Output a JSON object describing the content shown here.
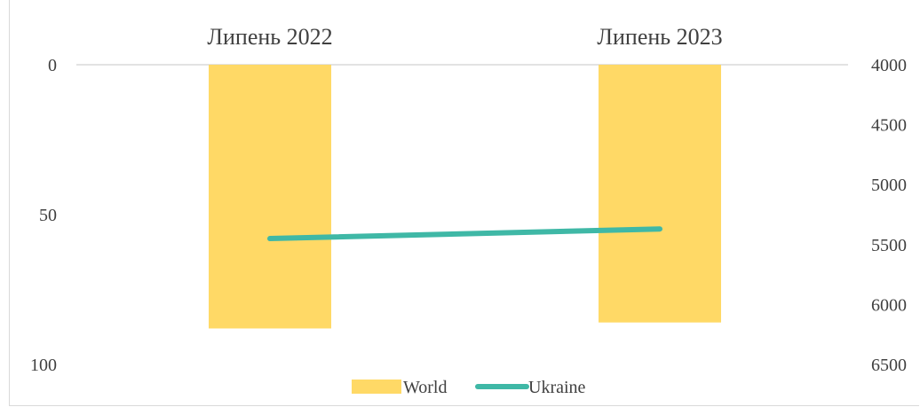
{
  "chart_data": {
    "type": "bar",
    "categories": [
      "Липень 2022",
      "Липень 2023"
    ],
    "series": [
      {
        "name": "World",
        "type": "bar",
        "axis": "left",
        "values": [
          88,
          86
        ],
        "color": "#FFD966"
      },
      {
        "name": "Ukraine",
        "type": "line",
        "axis": "right",
        "values": [
          5450,
          5370
        ],
        "color": "#3FB8A6"
      }
    ],
    "left_axis": {
      "ticks": [
        "0",
        "50",
        "100"
      ],
      "range": [
        0,
        100
      ],
      "reversed": true
    },
    "right_axis": {
      "ticks": [
        "4000",
        "4500",
        "5000",
        "5500",
        "6000",
        "6500"
      ],
      "range": [
        4000,
        6500
      ],
      "reversed": true
    },
    "x_axis_position": "top",
    "legend": {
      "position": "bottom",
      "items": [
        "World",
        "Ukraine"
      ]
    },
    "grid": false
  }
}
